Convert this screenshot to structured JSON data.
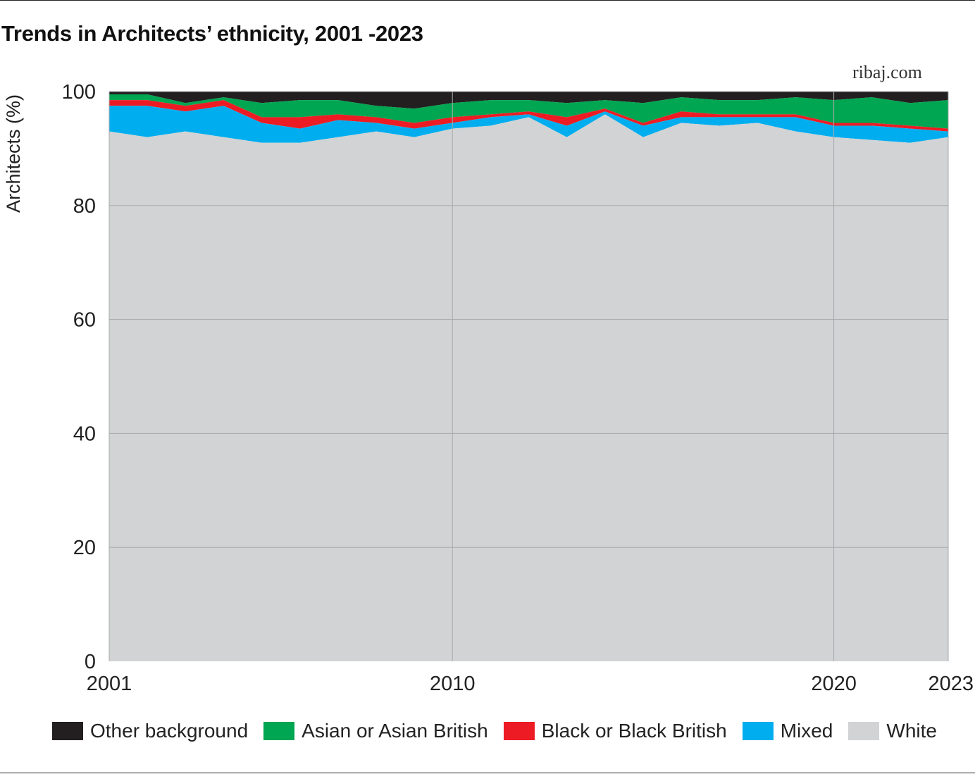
{
  "header": {
    "title": "Trends in Architects’ ethnicity, 2001 -2023",
    "source": "ribaj.com"
  },
  "chart_data": {
    "type": "area",
    "stacked": true,
    "title": "Trends in Architects’ ethnicity, 2001 -2023",
    "ylabel": "Architects (%)",
    "xlabel": "",
    "ylim": [
      0,
      100
    ],
    "xlim": [
      2001,
      2023
    ],
    "yticks": [
      0,
      20,
      40,
      60,
      80,
      100
    ],
    "xticks": [
      2001,
      2010,
      2020,
      2023
    ],
    "grid": true,
    "legend_position": "bottom",
    "x": [
      2001,
      2002,
      2003,
      2004,
      2005,
      2006,
      2007,
      2008,
      2009,
      2010,
      2011,
      2012,
      2013,
      2014,
      2015,
      2016,
      2017,
      2018,
      2019,
      2020,
      2021,
      2022,
      2023
    ],
    "series": [
      {
        "name": "White",
        "color": "#d1d3d4",
        "values": [
          93.0,
          92.0,
          93.0,
          92.0,
          91.0,
          91.0,
          92.0,
          93.0,
          92.0,
          93.5,
          94.0,
          95.5,
          92.0,
          96.0,
          92.0,
          94.5,
          94.0,
          94.5,
          93.0,
          92.0,
          91.5,
          91.0,
          92.0
        ]
      },
      {
        "name": "Mixed",
        "color": "#00aeef",
        "values": [
          4.5,
          5.5,
          3.5,
          5.5,
          3.5,
          2.5,
          3.0,
          1.5,
          1.5,
          1.0,
          1.5,
          0.5,
          2.0,
          0.5,
          2.0,
          1.0,
          1.5,
          1.0,
          2.5,
          2.0,
          2.5,
          2.5,
          1.0
        ]
      },
      {
        "name": "Black or Black British",
        "color": "#ed1c24",
        "values": [
          1.0,
          1.0,
          1.0,
          1.0,
          1.0,
          2.0,
          1.0,
          1.0,
          1.0,
          1.0,
          0.5,
          0.5,
          1.5,
          0.5,
          0.5,
          1.0,
          0.5,
          0.5,
          0.5,
          0.5,
          0.5,
          0.5,
          0.5
        ]
      },
      {
        "name": "Asian or Asian British",
        "color": "#00a651",
        "values": [
          1.0,
          1.0,
          0.5,
          0.5,
          2.5,
          3.0,
          2.5,
          2.0,
          2.5,
          2.5,
          2.5,
          2.0,
          2.5,
          1.5,
          3.5,
          2.5,
          2.5,
          2.5,
          3.0,
          4.0,
          4.5,
          4.0,
          5.0
        ]
      },
      {
        "name": "Other background",
        "color": "#231f20",
        "values": [
          0.5,
          0.5,
          2.0,
          1.0,
          2.0,
          1.5,
          1.5,
          2.5,
          3.0,
          2.0,
          1.5,
          1.5,
          2.0,
          1.5,
          2.0,
          1.0,
          1.5,
          1.5,
          1.0,
          1.5,
          1.0,
          2.0,
          1.5
        ]
      }
    ]
  }
}
